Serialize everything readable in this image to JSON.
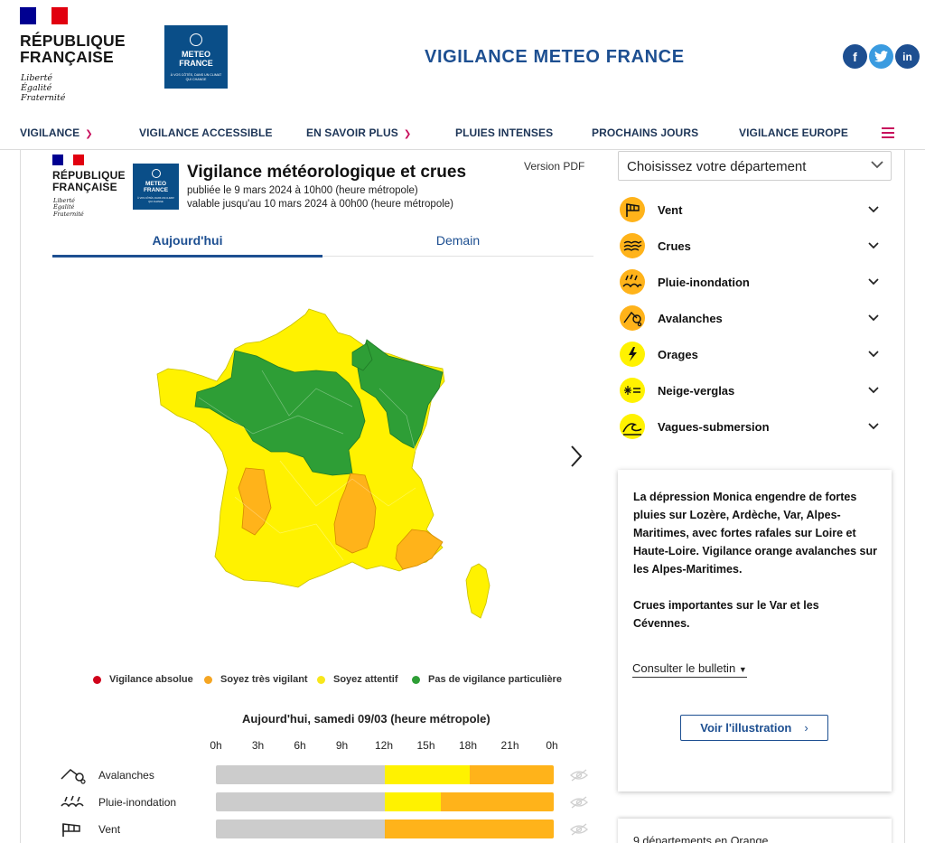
{
  "header": {
    "gov_title_line1": "RÉPUBLIQUE",
    "gov_title_line2": "FRANÇAISE",
    "motto": [
      "Liberté",
      "Égalité",
      "Fraternité"
    ],
    "logo_line1": "METEO",
    "logo_line2": "FRANCE",
    "logo_tagline": "À VOS CÔTÉS, DANS UN CLIMAT QUI CHANGE",
    "site_title": "VIGILANCE METEO FRANCE",
    "social": [
      {
        "name": "facebook",
        "glyph": "f",
        "color": "#1d4f91"
      },
      {
        "name": "twitter",
        "glyph": "t",
        "color": "#3a9be0"
      },
      {
        "name": "linkedin",
        "glyph": "in",
        "color": "#1d4f91"
      }
    ]
  },
  "nav": {
    "items": [
      "VIGILANCE",
      "VIGILANCE ACCESSIBLE",
      "EN SAVOIR PLUS",
      "PLUIES INTENSES",
      "PROCHAINS JOURS",
      "VIGILANCE EUROPE"
    ],
    "menu_icon": "hamburger-icon"
  },
  "bulletin": {
    "title": "Vigilance météorologique et crues",
    "published": "publiée le 9 mars 2024 à 10h00 (heure métropole)",
    "valid_until": "valable jusqu'au 10 mars 2024 à 00h00 (heure métropole)",
    "pdf_link": "Version PDF",
    "tabs": [
      "Aujourd'hui",
      "Demain"
    ],
    "active_tab": 0
  },
  "legend": [
    {
      "label": "Vigilance absolue",
      "color": "#d0021b"
    },
    {
      "label": "Soyez très vigilant",
      "color": "#f5a623"
    },
    {
      "label": "Soyez attentif",
      "color": "#f8e71c"
    },
    {
      "label": "Pas de vigilance particulière",
      "color": "#2e9e36"
    }
  ],
  "timeline": {
    "title": "Aujourd'hui, samedi 09/03 (heure métropole)",
    "hours": [
      "0h",
      "3h",
      "6h",
      "9h",
      "12h",
      "15h",
      "18h",
      "21h",
      "0h"
    ],
    "rows": [
      {
        "label": "Avalanches",
        "icon": "avalanche-icon",
        "segments": [
          {
            "from": 0,
            "to": 12,
            "level": "gray"
          },
          {
            "from": 12,
            "to": 18,
            "level": "yellow"
          },
          {
            "from": 18,
            "to": 24,
            "level": "orange"
          }
        ]
      },
      {
        "label": "Pluie-inondation",
        "icon": "rain-flood-icon",
        "segments": [
          {
            "from": 0,
            "to": 12,
            "level": "gray"
          },
          {
            "from": 12,
            "to": 16,
            "level": "yellow"
          },
          {
            "from": 16,
            "to": 24,
            "level": "orange"
          }
        ]
      },
      {
        "label": "Vent",
        "icon": "wind-icon",
        "segments": [
          {
            "from": 0,
            "to": 12,
            "level": "gray"
          },
          {
            "from": 12,
            "to": 24,
            "level": "orange"
          }
        ]
      }
    ],
    "level_colors": {
      "gray": "#cccccc",
      "yellow": "#fff200",
      "orange": "#ffb31a"
    }
  },
  "panel": {
    "department_select": "Choisissez votre département",
    "risks": [
      {
        "label": "Vent",
        "icon": "wind-icon",
        "color": "#ffb31a"
      },
      {
        "label": "Crues",
        "icon": "flood-icon",
        "color": "#ffb31a"
      },
      {
        "label": "Pluie-inondation",
        "icon": "rain-flood-icon",
        "color": "#ffb31a"
      },
      {
        "label": "Avalanches",
        "icon": "avalanche-icon",
        "color": "#ffb31a"
      },
      {
        "label": "Orages",
        "icon": "storm-icon",
        "color": "#fff200"
      },
      {
        "label": "Neige-verglas",
        "icon": "snow-ice-icon",
        "color": "#fff200"
      },
      {
        "label": "Vagues-submersion",
        "icon": "waves-icon",
        "color": "#fff200"
      }
    ],
    "summary_1": "La dépression Monica engendre de fortes pluies sur Lozère, Ardèche, Var, Alpes-Maritimes, avec fortes rafales sur Loire et Haute-Loire. Vigilance orange avalanches sur les Alpes-Maritimes.",
    "summary_2": "Crues importantes sur le Var et les Cévennes.",
    "consult_bulletin": "Consulter le bulletin",
    "view_illustration": "Voir l'illustration",
    "orange_count": "9 départements en Orange"
  },
  "map_colors": {
    "green": "#2e9e36",
    "yellow": "#fff200",
    "orange": "#ffb31a"
  }
}
